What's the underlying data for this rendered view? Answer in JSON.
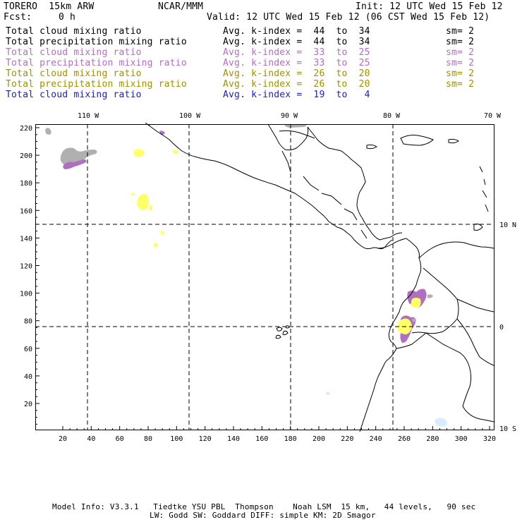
{
  "header": {
    "model": "TORERO  15km ARW",
    "org": "NCAR/MMM",
    "init": "Init: 12 UTC Wed 15 Feb 12",
    "fcst_label": "Fcst:",
    "fcst_value": "0 h",
    "valid": "Valid: 12 UTC Wed 15 Feb 12 (06 CST Wed 15 Feb 12)"
  },
  "legend": [
    {
      "field": "Total cloud mixing ratio",
      "kindex": "Avg. k-index =  44  to  34",
      "sm": "sm= 2",
      "color": "black"
    },
    {
      "field": "Total precipitation mixing ratio",
      "kindex": "Avg. k-index =  44  to  34",
      "sm": "sm= 2",
      "color": "black"
    },
    {
      "field": "Total cloud mixing ratio",
      "kindex": "Avg. k-index =  33  to  25",
      "sm": "sm= 2",
      "color": "purple"
    },
    {
      "field": "Total precipitation mixing ratio",
      "kindex": "Avg. k-index =  33  to  25",
      "sm": "sm= 2",
      "color": "purple"
    },
    {
      "field": "Total cloud mixing ratio",
      "kindex": "Avg. k-index =  26  to  20",
      "sm": "sm= 2",
      "color": "olive"
    },
    {
      "field": "Total precipitation mixing ratio",
      "kindex": "Avg. k-index =  26  to  20",
      "sm": "sm= 2",
      "color": "olive"
    },
    {
      "field": "Total cloud mixing ratio",
      "kindex": "Avg. k-index =  19  to   4",
      "sm": "",
      "color": "blue"
    }
  ],
  "colors": {
    "black": "#000000",
    "purple": "#b070c0",
    "olive": "#a09000",
    "blue": "#2020c0",
    "gray_cloud": "#b0b0b0",
    "purple_fill": "#b070c0",
    "yellow_fill": "#ffff66",
    "lightblue_fill": "#d8ecff"
  },
  "map": {
    "top_lon_labels": [
      "110 W",
      "100 W",
      "90 W",
      "80 W",
      "70 W"
    ],
    "right_lat_labels": [
      "10 N",
      "0",
      "10 S"
    ],
    "left_ticks": [
      "220",
      "200",
      "180",
      "160",
      "140",
      "120",
      "100",
      "80",
      "60",
      "40",
      "20"
    ],
    "bottom_ticks": [
      "20",
      "40",
      "60",
      "80",
      "100",
      "120",
      "140",
      "160",
      "180",
      "200",
      "220",
      "240",
      "260",
      "280",
      "300",
      "320"
    ]
  },
  "footer": {
    "line1": "Model Info: V3.3.1   Tiedtke YSU PBL  Thompson    Noah LSM  15 km,   44 levels,   90 sec",
    "line2": "LW: Godd SW: Goddard DIFF: simple KM: 2D Smagor"
  }
}
